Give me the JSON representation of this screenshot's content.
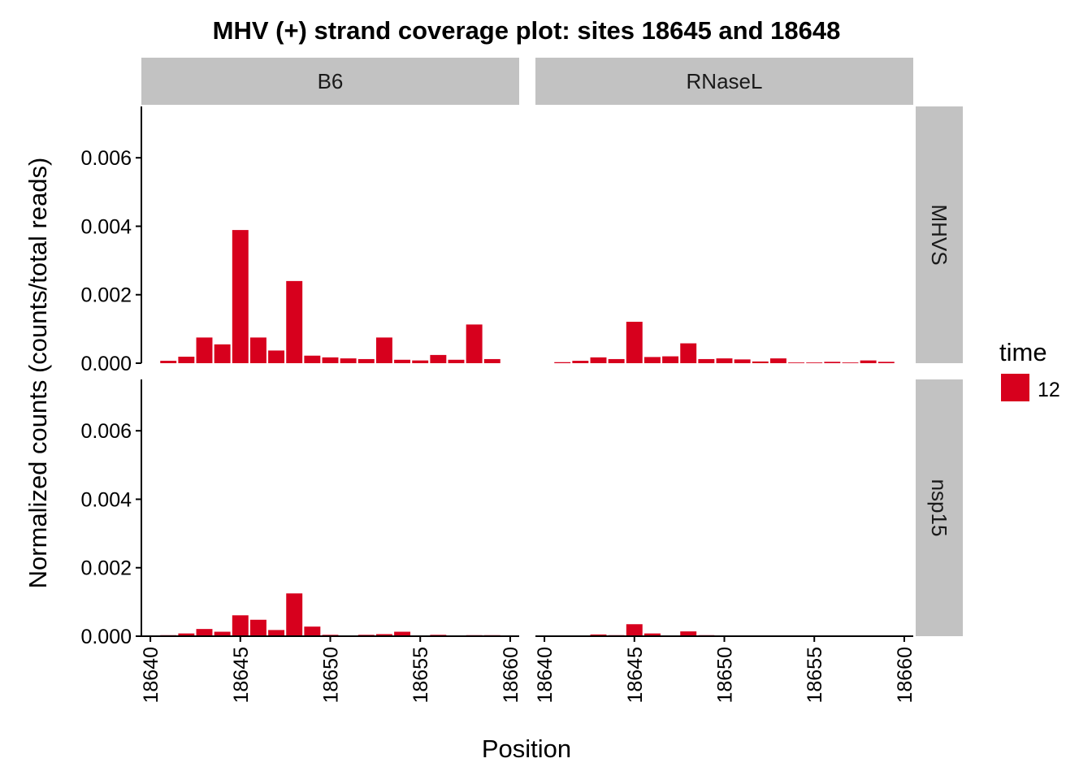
{
  "chart_data": {
    "type": "bar",
    "title": "MHV (+) strand coverage plot: sites 18645 and 18648",
    "xlabel": "Position",
    "ylabel": "Normalized counts (counts/total reads)",
    "xlim": [
      18639.5,
      18660.5
    ],
    "ylim": [
      0,
      0.0075
    ],
    "x_ticks": [
      18640,
      18645,
      18650,
      18655,
      18660
    ],
    "x_tick_labels": [
      "18640",
      "18645",
      "18650",
      "18655",
      "18660"
    ],
    "y_ticks": [
      0,
      0.002,
      0.004,
      0.006
    ],
    "y_tick_labels": [
      "0.000",
      "0.002",
      "0.004",
      "0.006"
    ],
    "columns": [
      "B6",
      "RNaseL"
    ],
    "rows": [
      "MHVS",
      "nsp15"
    ],
    "grid": false,
    "legend": {
      "title": "time",
      "position": "right",
      "entries": [
        {
          "label": "12",
          "color": "#D7001D"
        }
      ]
    },
    "bar_color": "#D7001D",
    "strip_color": "#C2C2C2",
    "x": [
      18641,
      18642,
      18643,
      18644,
      18645,
      18646,
      18647,
      18648,
      18649,
      18650,
      18651,
      18652,
      18653,
      18654,
      18655,
      18656,
      18657,
      18658,
      18659
    ],
    "panels": [
      {
        "column": "B6",
        "row": "MHVS",
        "values": [
          7e-05,
          0.00019,
          0.00075,
          0.00055,
          0.00389,
          0.00075,
          0.00037,
          0.0024,
          0.00022,
          0.00017,
          0.00014,
          0.00012,
          0.00075,
          0.0001,
          8e-05,
          0.00024,
          0.0001,
          0.00113,
          0.00012
        ]
      },
      {
        "column": "RNaseL",
        "row": "MHVS",
        "values": [
          3e-05,
          7e-05,
          0.00017,
          0.00012,
          0.00121,
          0.00018,
          0.0002,
          0.00058,
          0.00012,
          0.00014,
          0.00011,
          5e-05,
          0.00014,
          2e-05,
          2e-05,
          4e-05,
          2e-05,
          8e-05,
          4e-05
        ]
      },
      {
        "column": "B6",
        "row": "nsp15",
        "values": [
          3e-05,
          8e-05,
          0.00021,
          0.00013,
          0.00061,
          0.00048,
          0.00018,
          0.00125,
          0.00028,
          4e-05,
          1e-05,
          4e-05,
          6e-05,
          0.00013,
          2e-05,
          4e-05,
          1e-05,
          3e-05,
          3e-05
        ]
      },
      {
        "column": "RNaseL",
        "row": "nsp15",
        "values": [
          1e-05,
          1e-05,
          5e-05,
          3e-05,
          0.00035,
          8e-05,
          2e-05,
          0.00014,
          3e-05,
          2e-05,
          2e-05,
          2e-05,
          1e-05,
          0.0,
          2e-05,
          1e-05,
          2e-05,
          1e-05,
          0.0
        ]
      }
    ]
  }
}
